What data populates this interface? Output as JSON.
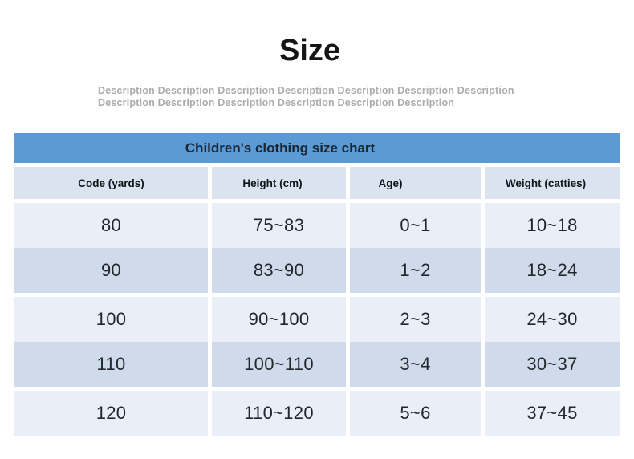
{
  "page": {
    "title": "Size",
    "description_line1": "Description Description Description Description Description Description Description",
    "description_line2": "Description Description Description Description Description Description"
  },
  "size_chart": {
    "title": "Children's clothing size chart",
    "columns": [
      "Code (yards)",
      "Height (cm)",
      "Age)",
      "Weight (catties)"
    ],
    "rows": [
      [
        "80",
        "75~83",
        "0~1",
        "10~18"
      ],
      [
        "90",
        "83~90",
        "1~2",
        "18~24"
      ],
      [
        "100",
        "90~100",
        "2~3",
        "24~30"
      ],
      [
        "110",
        "100~110",
        "3~4",
        "30~37"
      ],
      [
        "120",
        "110~120",
        "5~6",
        "37~45"
      ]
    ]
  },
  "colors": {
    "table_title_bg": "#5b9ad3",
    "table_title_text": "#1b2734",
    "header_row_bg": "#dce3f0",
    "row_light": "#eaeef7",
    "row_dark": "#cfdaeb",
    "cell_text": "#23272c",
    "description_text": "#acacac"
  }
}
